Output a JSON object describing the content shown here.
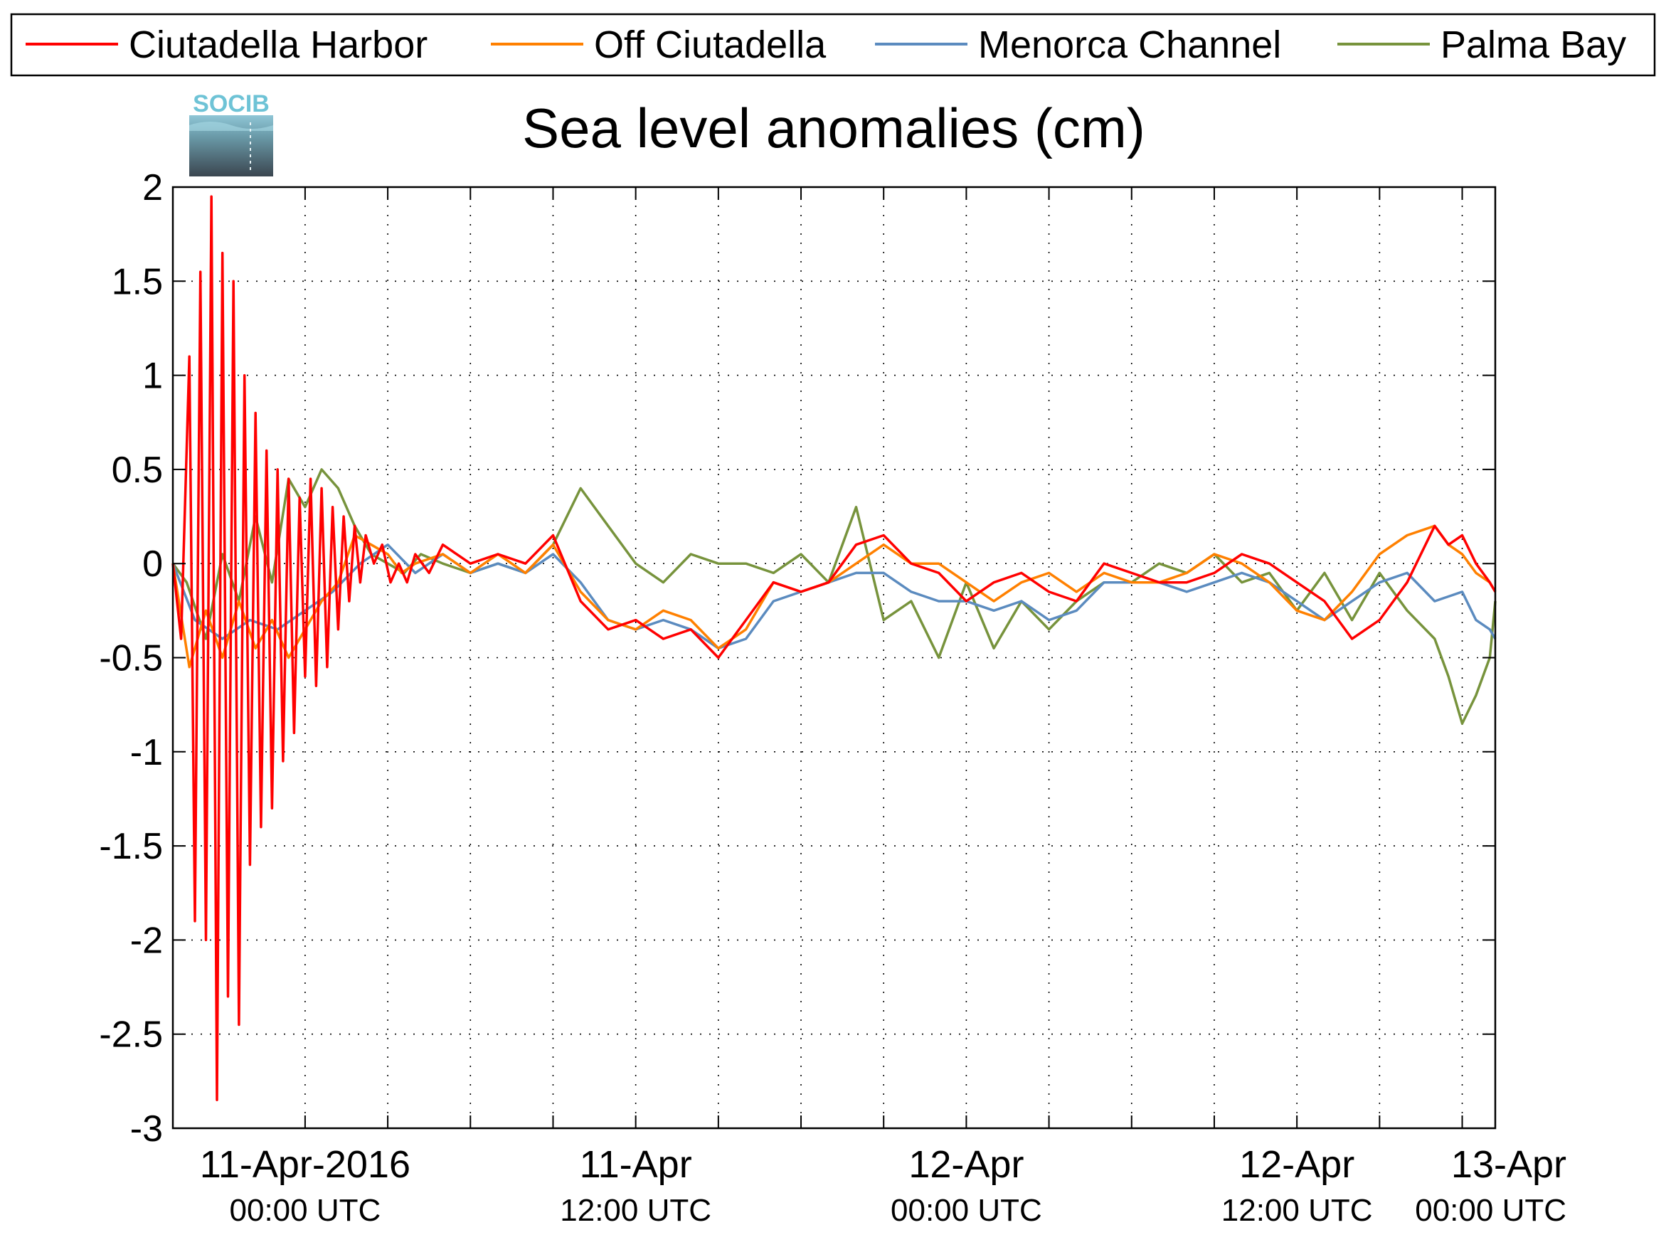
{
  "chart_data": {
    "type": "line",
    "title": "Sea level anomalies (cm)",
    "logo": {
      "text": "SOCIB"
    },
    "ylim": [
      -3,
      2
    ],
    "yticks": [
      2,
      1.5,
      1,
      0.5,
      0,
      -0.5,
      -1,
      -1.5,
      -2,
      -2.5,
      -3
    ],
    "ytick_labels": [
      "2",
      "1.5",
      "1",
      "0.5",
      "0",
      "-0.5",
      "-1",
      "-1.5",
      "-2",
      "-2.5",
      "-3"
    ],
    "xlim_hours": [
      -4.8,
      43.2
    ],
    "xtick_hours": [
      0,
      3,
      6,
      9,
      12,
      15,
      18,
      21,
      24,
      27,
      30,
      33,
      36,
      39,
      42
    ],
    "xtick_labels": [
      {
        "hour": 0,
        "main": "11-Apr-2016",
        "sub": "00:00 UTC"
      },
      {
        "hour": 12,
        "main": "11-Apr",
        "sub": "12:00 UTC"
      },
      {
        "hour": 24,
        "main": "12-Apr",
        "sub": "00:00 UTC"
      },
      {
        "hour": 36,
        "main": "12-Apr",
        "sub": "12:00 UTC"
      },
      {
        "hour": 48,
        "main": "13-Apr",
        "sub": "00:00 UTC"
      }
    ],
    "grid": true,
    "legend_position": "top",
    "series": [
      {
        "name": "Ciutadella Harbor",
        "color": "#ff0000",
        "hours": [
          -4.8,
          -4.5,
          -4.2,
          -4.0,
          -3.8,
          -3.6,
          -3.4,
          -3.2,
          -3.0,
          -2.8,
          -2.6,
          -2.4,
          -2.2,
          -2.0,
          -1.8,
          -1.6,
          -1.4,
          -1.2,
          -1.0,
          -0.8,
          -0.6,
          -0.4,
          -0.2,
          0.0,
          0.2,
          0.4,
          0.6,
          0.8,
          1.0,
          1.2,
          1.4,
          1.6,
          1.8,
          2.0,
          2.2,
          2.5,
          2.8,
          3.1,
          3.4,
          3.7,
          4.0,
          4.5,
          5.0,
          6.0,
          7.0,
          8.0,
          9.0,
          10.0,
          11.0,
          12.0,
          13.0,
          14.0,
          15.0,
          16.0,
          17.0,
          18.0,
          19.0,
          20.0,
          21.0,
          22.0,
          23.0,
          24.0,
          25.0,
          26.0,
          27.0,
          28.0,
          29.0,
          30.0,
          31.0,
          32.0,
          33.0,
          34.0,
          35.0,
          36.0,
          37.0,
          38.0,
          39.0,
          40.0,
          41.0,
          41.5,
          42.0,
          42.5,
          43.0,
          43.2
        ],
        "values": [
          0.0,
          -0.4,
          1.1,
          -1.9,
          1.55,
          -2.0,
          1.95,
          -2.85,
          1.65,
          -2.3,
          1.5,
          -2.45,
          1.0,
          -1.6,
          0.8,
          -1.4,
          0.6,
          -1.3,
          0.5,
          -1.05,
          0.45,
          -0.9,
          0.35,
          -0.6,
          0.45,
          -0.65,
          0.4,
          -0.55,
          0.3,
          -0.35,
          0.25,
          -0.2,
          0.2,
          -0.1,
          0.15,
          0.0,
          0.1,
          -0.1,
          0.0,
          -0.1,
          0.05,
          -0.05,
          0.1,
          0.0,
          0.05,
          0.0,
          0.15,
          -0.2,
          -0.35,
          -0.3,
          -0.4,
          -0.35,
          -0.5,
          -0.3,
          -0.1,
          -0.15,
          -0.1,
          0.1,
          0.15,
          0.0,
          -0.05,
          -0.2,
          -0.1,
          -0.05,
          -0.15,
          -0.2,
          0.0,
          -0.05,
          -0.1,
          -0.1,
          -0.05,
          0.05,
          0.0,
          -0.1,
          -0.2,
          -0.4,
          -0.3,
          -0.1,
          0.2,
          0.1,
          0.15,
          0.0,
          -0.1,
          -0.15
        ]
      },
      {
        "name": "Off Ciutadella",
        "color": "#ff8000",
        "hours": [
          -4.8,
          -4.2,
          -3.6,
          -3.0,
          -2.4,
          -1.8,
          -1.2,
          -0.6,
          0.0,
          0.6,
          1.2,
          1.8,
          2.4,
          3.0,
          3.5,
          4.0,
          5.0,
          6.0,
          7.0,
          8.0,
          9.0,
          10.0,
          11.0,
          12.0,
          13.0,
          14.0,
          15.0,
          16.0,
          17.0,
          18.0,
          19.0,
          20.0,
          21.0,
          22.0,
          23.0,
          24.0,
          25.0,
          26.0,
          27.0,
          28.0,
          29.0,
          30.0,
          31.0,
          32.0,
          33.0,
          34.0,
          35.0,
          36.0,
          37.0,
          38.0,
          39.0,
          40.0,
          41.0,
          41.5,
          42.0,
          42.5,
          43.0,
          43.2
        ],
        "values": [
          0.0,
          -0.55,
          -0.25,
          -0.5,
          -0.2,
          -0.45,
          -0.3,
          -0.5,
          -0.35,
          -0.2,
          -0.1,
          0.15,
          0.1,
          0.05,
          -0.05,
          0.0,
          0.05,
          -0.05,
          0.05,
          -0.05,
          0.1,
          -0.15,
          -0.3,
          -0.35,
          -0.25,
          -0.3,
          -0.45,
          -0.35,
          -0.1,
          -0.15,
          -0.1,
          0.0,
          0.1,
          0.0,
          0.0,
          -0.1,
          -0.2,
          -0.1,
          -0.05,
          -0.15,
          -0.05,
          -0.1,
          -0.1,
          -0.05,
          0.05,
          0.0,
          -0.1,
          -0.25,
          -0.3,
          -0.15,
          0.05,
          0.15,
          0.2,
          0.1,
          0.05,
          -0.05,
          -0.1,
          -0.15
        ]
      },
      {
        "name": "Menorca Channel",
        "color": "#5b8bbf",
        "hours": [
          -4.8,
          -4.0,
          -3.0,
          -2.0,
          -1.0,
          0.0,
          1.0,
          2.0,
          3.0,
          4.0,
          5.0,
          6.0,
          7.0,
          8.0,
          9.0,
          10.0,
          11.0,
          12.0,
          13.0,
          14.0,
          15.0,
          16.0,
          17.0,
          18.0,
          19.0,
          20.0,
          21.0,
          22.0,
          23.0,
          24.0,
          25.0,
          26.0,
          27.0,
          28.0,
          29.0,
          30.0,
          31.0,
          32.0,
          33.0,
          34.0,
          35.0,
          36.0,
          37.0,
          38.0,
          39.0,
          40.0,
          41.0,
          42.0,
          42.5,
          43.0,
          43.2
        ],
        "values": [
          0.0,
          -0.3,
          -0.4,
          -0.3,
          -0.35,
          -0.25,
          -0.15,
          0.0,
          0.1,
          -0.05,
          0.05,
          -0.05,
          0.0,
          -0.05,
          0.05,
          -0.1,
          -0.3,
          -0.35,
          -0.3,
          -0.35,
          -0.45,
          -0.4,
          -0.2,
          -0.15,
          -0.1,
          -0.05,
          -0.05,
          -0.15,
          -0.2,
          -0.2,
          -0.25,
          -0.2,
          -0.3,
          -0.25,
          -0.1,
          -0.1,
          -0.1,
          -0.15,
          -0.1,
          -0.05,
          -0.1,
          -0.2,
          -0.3,
          -0.2,
          -0.1,
          -0.05,
          -0.2,
          -0.15,
          -0.3,
          -0.35,
          -0.4
        ]
      },
      {
        "name": "Palma Bay",
        "color": "#77933c",
        "hours": [
          -4.8,
          -4.3,
          -3.6,
          -3.0,
          -2.4,
          -1.8,
          -1.2,
          -0.6,
          0.0,
          0.6,
          1.2,
          1.8,
          2.4,
          3.0,
          3.6,
          4.2,
          5.0,
          6.0,
          7.0,
          8.0,
          9.0,
          10.0,
          11.0,
          12.0,
          13.0,
          14.0,
          15.0,
          16.0,
          17.0,
          18.0,
          19.0,
          20.0,
          21.0,
          22.0,
          23.0,
          24.0,
          25.0,
          26.0,
          27.0,
          28.0,
          29.0,
          30.0,
          31.0,
          32.0,
          33.0,
          34.0,
          35.0,
          36.0,
          37.0,
          38.0,
          39.0,
          40.0,
          41.0,
          41.5,
          42.0,
          42.5,
          43.0,
          43.2
        ],
        "values": [
          0.0,
          -0.1,
          -0.4,
          0.05,
          -0.2,
          0.25,
          -0.1,
          0.45,
          0.3,
          0.5,
          0.4,
          0.2,
          0.05,
          0.0,
          -0.05,
          0.05,
          0.0,
          -0.05,
          0.0,
          -0.05,
          0.1,
          0.4,
          0.2,
          0.0,
          -0.1,
          0.05,
          0.0,
          0.0,
          -0.05,
          0.05,
          -0.1,
          0.3,
          -0.3,
          -0.2,
          -0.5,
          -0.1,
          -0.45,
          -0.2,
          -0.35,
          -0.2,
          -0.1,
          -0.1,
          0.0,
          -0.05,
          0.05,
          -0.1,
          -0.05,
          -0.25,
          -0.05,
          -0.3,
          -0.05,
          -0.25,
          -0.4,
          -0.6,
          -0.85,
          -0.7,
          -0.5,
          -0.2
        ]
      }
    ]
  }
}
